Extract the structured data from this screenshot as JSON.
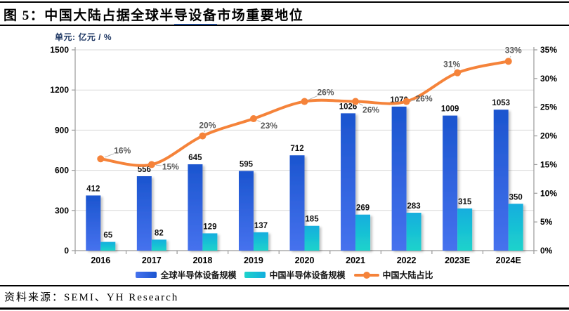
{
  "header": {
    "title_prefix": "图 5：中国大陆占据全球半",
    "title_underlined": "导设备",
    "title_suffix": "市场重要地位"
  },
  "unit_label": "单元: 亿元 / %",
  "source": "资料来源：SEMI、YH Research",
  "colors": {
    "global_bar_top": "#1b55cf",
    "global_bar_bottom": "#4672ee",
    "china_bar_top": "#12aede",
    "china_bar_bottom": "#1ed3cb",
    "line": "#f5833a",
    "marker": "#f5833a",
    "grid": "#d9d9d9",
    "axis": "#9a9a9a",
    "leader": "#b3b3b3",
    "unit_label": "#1f3864",
    "title_underline": "#2f6fe0"
  },
  "chart_data": {
    "type": "bar",
    "subtype": "combo-bar-line",
    "title": "图 5：中国大陆占据全球半导设备市场重要地位",
    "unit": "单元: 亿元 / %",
    "categories": [
      "2016",
      "2017",
      "2018",
      "2019",
      "2020",
      "2021",
      "2022",
      "2023E",
      "2024E"
    ],
    "series": [
      {
        "name": "全球半导体设备规模",
        "type": "bar",
        "axis": "left",
        "values": [
          412,
          556,
          645,
          595,
          712,
          1026,
          1076,
          1009,
          1053
        ]
      },
      {
        "name": "中国半导体设备规模",
        "type": "bar",
        "axis": "left",
        "values": [
          65,
          82,
          129,
          137,
          185,
          269,
          283,
          315,
          350
        ]
      },
      {
        "name": "中国大陆占比",
        "type": "line",
        "axis": "right",
        "values": [
          16,
          15,
          20,
          23,
          26,
          26,
          26,
          31,
          33
        ],
        "labels": [
          "16%",
          "15%",
          "20%",
          "23%",
          "26%",
          "26%",
          "26%",
          "31%",
          "33%"
        ]
      }
    ],
    "left_axis": {
      "min": 0,
      "max": 1500,
      "ticks": [
        0,
        300,
        600,
        900,
        1200,
        1500
      ]
    },
    "right_axis": {
      "min": 0,
      "max": 35,
      "ticks": [
        "0%",
        "5%",
        "10%",
        "15%",
        "20%",
        "25%",
        "30%",
        "35%"
      ]
    },
    "grid": true,
    "legend_position": "bottom"
  }
}
